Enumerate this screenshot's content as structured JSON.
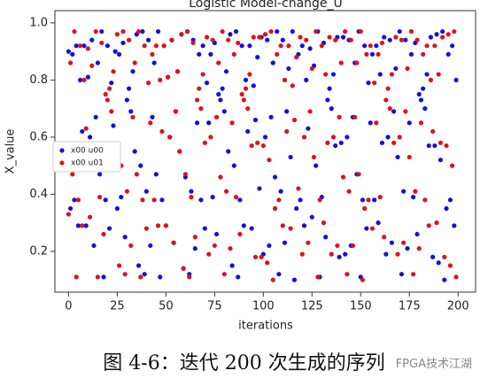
{
  "chart_data": {
    "type": "scatter",
    "title": "Logistic Model-change_U",
    "xlabel": "iterations",
    "ylabel": "X_value",
    "x": [
      0,
      1,
      2,
      3,
      4,
      5,
      6,
      7,
      8,
      9,
      10,
      11,
      12,
      13,
      14,
      15,
      16,
      17,
      18,
      19,
      20,
      21,
      22,
      23,
      24,
      25,
      26,
      27,
      28,
      29,
      30,
      31,
      32,
      33,
      34,
      35,
      36,
      37,
      38,
      39,
      40,
      41,
      42,
      43,
      44,
      45,
      46,
      47,
      48,
      49,
      50,
      51,
      52,
      53,
      54,
      55,
      56,
      57,
      58,
      59,
      60,
      61,
      62,
      63,
      64,
      65,
      66,
      67,
      68,
      69,
      70,
      71,
      72,
      73,
      74,
      75,
      76,
      77,
      78,
      79,
      80,
      81,
      82,
      83,
      84,
      85,
      86,
      87,
      88,
      89,
      90,
      91,
      92,
      93,
      94,
      95,
      96,
      97,
      98,
      99,
      100,
      101,
      102,
      103,
      104,
      105,
      106,
      107,
      108,
      109,
      110,
      111,
      112,
      113,
      114,
      115,
      116,
      117,
      118,
      119,
      120,
      121,
      122,
      123,
      124,
      125,
      126,
      127,
      128,
      129,
      130,
      131,
      132,
      133,
      134,
      135,
      136,
      137,
      138,
      139,
      140,
      141,
      142,
      143,
      144,
      145,
      146,
      147,
      148,
      149,
      150,
      151,
      152,
      153,
      154,
      155,
      156,
      157,
      158,
      159,
      160,
      161,
      162,
      163,
      164,
      165,
      166,
      167,
      168,
      169,
      170,
      171,
      172,
      173,
      174,
      175,
      176,
      177,
      178,
      179,
      180,
      181,
      182,
      183,
      184,
      185,
      186,
      187,
      188,
      189,
      190,
      191,
      192,
      193,
      194,
      195,
      196,
      197,
      198,
      199
    ],
    "series": [
      {
        "name": "x00 u00",
        "color": "#1010e0",
        "values": [
          0.9,
          0.35,
          0.89,
          0.38,
          0.92,
          0.29,
          0.8,
          0.62,
          0.92,
          0.29,
          0.81,
          0.6,
          0.94,
          0.22,
          0.67,
          0.86,
          0.47,
          0.97,
          0.11,
          0.38,
          0.92,
          0.28,
          0.79,
          0.64,
          0.9,
          0.35,
          0.89,
          0.39,
          0.93,
          0.25,
          0.73,
          0.77,
          0.69,
          0.83,
          0.55,
          0.96,
          0.15,
          0.5,
          0.97,
          0.12,
          0.41,
          0.94,
          0.22,
          0.67,
          0.86,
          0.47,
          0.97,
          0.11,
          0.38,
          0.92,
          0.29,
          0.81,
          0.6,
          0.94,
          0.23,
          0.69,
          0.83,
          0.55,
          0.96,
          0.14,
          0.46,
          0.97,
          0.12,
          0.41,
          0.94,
          0.21,
          0.65,
          0.89,
          0.38,
          0.92,
          0.28,
          0.79,
          0.65,
          0.89,
          0.39,
          0.93,
          0.26,
          0.75,
          0.73,
          0.77,
          0.69,
          0.83,
          0.55,
          0.96,
          0.15,
          0.5,
          0.97,
          0.11,
          0.38,
          0.92,
          0.29,
          0.8,
          0.62,
          0.92,
          0.28,
          0.78,
          0.66,
          0.88,
          0.42,
          0.95,
          0.19,
          0.6,
          0.94,
          0.22,
          0.67,
          0.86,
          0.46,
          0.97,
          0.12,
          0.41,
          0.94,
          0.23,
          0.69,
          0.84,
          0.53,
          0.97,
          0.1,
          0.35,
          0.89,
          0.38,
          0.92,
          0.29,
          0.8,
          0.63,
          0.91,
          0.32,
          0.85,
          0.5,
          0.97,
          0.11,
          0.39,
          0.93,
          0.25,
          0.73,
          0.77,
          0.7,
          0.82,
          0.57,
          0.95,
          0.18,
          0.58,
          0.95,
          0.19,
          0.6,
          0.94,
          0.22,
          0.67,
          0.86,
          0.47,
          0.97,
          0.11,
          0.38,
          0.92,
          0.28,
          0.79,
          0.65,
          0.89,
          0.38,
          0.92,
          0.3,
          0.82,
          0.58,
          0.95,
          0.19,
          0.6,
          0.94,
          0.23,
          0.69,
          0.84,
          0.53,
          0.97,
          0.12,
          0.41,
          0.94,
          0.21,
          0.65,
          0.89,
          0.39,
          0.93,
          0.26,
          0.75,
          0.73,
          0.77,
          0.7,
          0.82,
          0.57,
          0.95,
          0.18,
          0.57,
          0.96,
          0.16,
          0.52,
          0.97,
          0.1,
          0.35,
          0.89,
          0.38,
          0.92,
          0.29,
          0.8
        ]
      },
      {
        "name": "x00 u01",
        "color": "#e0101c",
        "values": [
          0.33,
          0.86,
          0.47,
          0.97,
          0.11,
          0.38,
          0.92,
          0.29,
          0.8,
          0.63,
          0.91,
          0.32,
          0.85,
          0.5,
          0.97,
          0.11,
          0.39,
          0.93,
          0.26,
          0.75,
          0.73,
          0.77,
          0.69,
          0.83,
          0.55,
          0.96,
          0.15,
          0.5,
          0.97,
          0.12,
          0.41,
          0.94,
          0.22,
          0.67,
          0.86,
          0.47,
          0.97,
          0.11,
          0.38,
          0.92,
          0.28,
          0.79,
          0.65,
          0.89,
          0.38,
          0.92,
          0.29,
          0.8,
          0.62,
          0.92,
          0.29,
          0.81,
          0.6,
          0.94,
          0.23,
          0.69,
          0.83,
          0.55,
          0.96,
          0.14,
          0.47,
          0.97,
          0.11,
          0.39,
          0.93,
          0.25,
          0.73,
          0.77,
          0.7,
          0.82,
          0.58,
          0.95,
          0.19,
          0.6,
          0.94,
          0.22,
          0.67,
          0.86,
          0.46,
          0.97,
          0.12,
          0.41,
          0.94,
          0.21,
          0.65,
          0.89,
          0.39,
          0.93,
          0.26,
          0.75,
          0.73,
          0.77,
          0.7,
          0.82,
          0.57,
          0.95,
          0.18,
          0.58,
          0.95,
          0.18,
          0.57,
          0.96,
          0.16,
          0.52,
          0.97,
          0.1,
          0.35,
          0.89,
          0.38,
          0.92,
          0.29,
          0.8,
          0.62,
          0.92,
          0.28,
          0.78,
          0.66,
          0.88,
          0.42,
          0.95,
          0.19,
          0.6,
          0.94,
          0.23,
          0.69,
          0.84,
          0.53,
          0.97,
          0.11,
          0.38,
          0.92,
          0.3,
          0.82,
          0.58,
          0.95,
          0.19,
          0.6,
          0.94,
          0.22,
          0.67,
          0.86,
          0.46,
          0.97,
          0.12,
          0.41,
          0.94,
          0.22,
          0.67,
          0.86,
          0.47,
          0.97,
          0.1,
          0.35,
          0.89,
          0.38,
          0.92,
          0.28,
          0.79,
          0.65,
          0.89,
          0.39,
          0.93,
          0.25,
          0.73,
          0.77,
          0.7,
          0.82,
          0.58,
          0.95,
          0.19,
          0.6,
          0.94,
          0.23,
          0.69,
          0.84,
          0.53,
          0.97,
          0.12,
          0.41,
          0.94,
          0.21,
          0.65,
          0.89,
          0.38,
          0.92,
          0.29,
          0.8,
          0.62,
          0.92,
          0.3,
          0.82,
          0.58,
          0.95,
          0.18,
          0.57,
          0.96,
          0.15,
          0.5,
          0.97,
          0.11
        ]
      }
    ],
    "xlim": [
      -7,
      209
    ],
    "ylim": [
      0.057,
      1.043
    ],
    "xticks": [
      0,
      25,
      50,
      75,
      100,
      125,
      150,
      175,
      200
    ],
    "yticks": [
      {
        "value": 0.2,
        "label": "0.2"
      },
      {
        "value": 0.4,
        "label": "0.4"
      },
      {
        "value": 0.6,
        "label": "0.6"
      },
      {
        "value": 0.8,
        "label": "0.8"
      },
      {
        "value": 1.0,
        "label": "1.0"
      }
    ],
    "legend": "left"
  },
  "caption": "图 4-6：迭代 200 次生成的序列",
  "watermark": "FPGA技术江湖"
}
